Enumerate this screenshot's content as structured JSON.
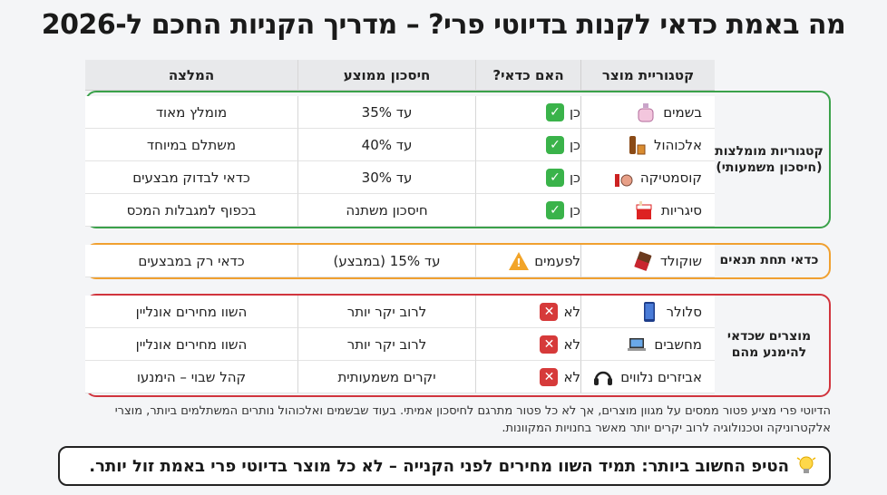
{
  "title": "מה באמת כדאי לקנות בדיוטי פרי? – מדריך הקניות החכם ל-2026",
  "headers": {
    "category": "קטגוריית מוצר",
    "worth": "האם כדאי?",
    "savings": "חיסכון ממוצע",
    "recommendation": "המלצה"
  },
  "groups": {
    "recommended": "קטגוריות מומלצות (חיסכון משמעותי)",
    "conditional": "כדאי תחת תנאים",
    "avoid": "מוצרים שכדאי להימנע מהם"
  },
  "rows": [
    {
      "category": "בשמים",
      "icon": "perfume-icon",
      "worth": "כן",
      "status": "yes",
      "savings": "עד 35%",
      "recommendation": "מומלץ מאוד"
    },
    {
      "category": "אלכוהול",
      "icon": "whiskey-icon",
      "worth": "כן",
      "status": "yes",
      "savings": "עד 40%",
      "recommendation": "משתלם במיוחד"
    },
    {
      "category": "קוסמטיקה",
      "icon": "makeup-icon",
      "worth": "כן",
      "status": "yes",
      "savings": "עד 30%",
      "recommendation": "כדאי לבדוק מבצעים"
    },
    {
      "category": "סיגריות",
      "icon": "cigarettes-icon",
      "worth": "כן",
      "status": "yes",
      "savings": "חיסכון משתנה",
      "recommendation": "בכפוף למגבלות המכס"
    },
    {
      "category": "שוקולד",
      "icon": "chocolate-icon",
      "worth": "לפעמים",
      "status": "warn",
      "savings": "עד 15% (במבצע)",
      "recommendation": "כדאי רק במבצעים"
    },
    {
      "category": "סלולר",
      "icon": "phone-icon",
      "worth": "לא",
      "status": "no",
      "savings": "לרוב יקר יותר",
      "recommendation": "השוו מחירים אונליין"
    },
    {
      "category": "מחשבים",
      "icon": "laptop-icon",
      "worth": "לא",
      "status": "no",
      "savings": "לרוב יקר יותר",
      "recommendation": "השוו מחירים אונליין"
    },
    {
      "category": "אביזרים נלווים",
      "icon": "headphones-icon",
      "worth": "לא",
      "status": "no",
      "savings": "יקרים משמעותית",
      "recommendation": "קהל שבוי – הימנעו"
    }
  ],
  "footnote": "הדיוטי פרי מציע פטור ממסים על מגוון מוצרים, אך לא כל פטור מתרגם לחיסכון אמיתי. בעוד שבשמים ואלכוהול נותרים המשתלמים ביותר, מוצרי אלקטרוניקה וטכנולוגיה לרוב יקרים יותר מאשר בחנויות המקוונות.",
  "tip": "הטיפ החשוב ביותר: תמיד השוו מחירים לפני הקנייה – לא כל מוצר בדיוטי פרי באמת זול יותר.",
  "colors": {
    "green": "#3aa14a",
    "orange": "#f0a030",
    "red": "#d1343d",
    "check": "#3ab34a"
  }
}
